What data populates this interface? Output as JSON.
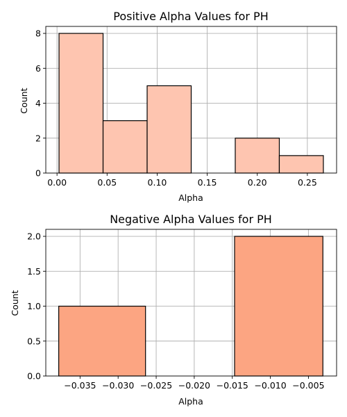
{
  "chart_data": [
    {
      "type": "bar",
      "title": "Positive Alpha Values for PH",
      "xlabel": "Alpha",
      "ylabel": "Count",
      "bar_color": "#fec5b0",
      "bins": [
        {
          "x0": 0.002,
          "x1": 0.046,
          "count": 8
        },
        {
          "x0": 0.046,
          "x1": 0.09,
          "count": 3
        },
        {
          "x0": 0.09,
          "x1": 0.134,
          "count": 5
        },
        {
          "x0": 0.134,
          "x1": 0.178,
          "count": 0
        },
        {
          "x0": 0.178,
          "x1": 0.222,
          "count": 2
        },
        {
          "x0": 0.222,
          "x1": 0.266,
          "count": 1
        }
      ],
      "xlim": [
        -0.0112,
        0.2792
      ],
      "ylim": [
        0,
        8.4
      ],
      "xticks": [
        0.0,
        0.05,
        0.1,
        0.15,
        0.2,
        0.25
      ],
      "xtick_labels": [
        "0.00",
        "0.05",
        "0.10",
        "0.15",
        "0.20",
        "0.25"
      ],
      "yticks": [
        0,
        2,
        4,
        6,
        8
      ],
      "ytick_labels": [
        "0",
        "2",
        "4",
        "6",
        "8"
      ],
      "grid": true
    },
    {
      "type": "bar",
      "title": "Negative Alpha Values for PH",
      "xlabel": "Alpha",
      "ylabel": "Count",
      "bar_color": "#fca582",
      "bins": [
        {
          "x0": -0.0378,
          "x1": -0.0264,
          "count": 1
        },
        {
          "x0": -0.0264,
          "x1": -0.0147,
          "count": 0
        },
        {
          "x0": -0.0147,
          "x1": -0.0031,
          "count": 2
        }
      ],
      "xlim": [
        -0.0395,
        -0.0013
      ],
      "ylim": [
        0,
        2.1
      ],
      "xticks": [
        -0.035,
        -0.03,
        -0.025,
        -0.02,
        -0.015,
        -0.01,
        -0.005
      ],
      "xtick_labels": [
        "−0.035",
        "−0.030",
        "−0.025",
        "−0.020",
        "−0.015",
        "−0.010",
        "−0.005"
      ],
      "yticks": [
        0.0,
        0.5,
        1.0,
        1.5,
        2.0
      ],
      "ytick_labels": [
        "0.0",
        "0.5",
        "1.0",
        "1.5",
        "2.0"
      ],
      "grid": true
    }
  ]
}
